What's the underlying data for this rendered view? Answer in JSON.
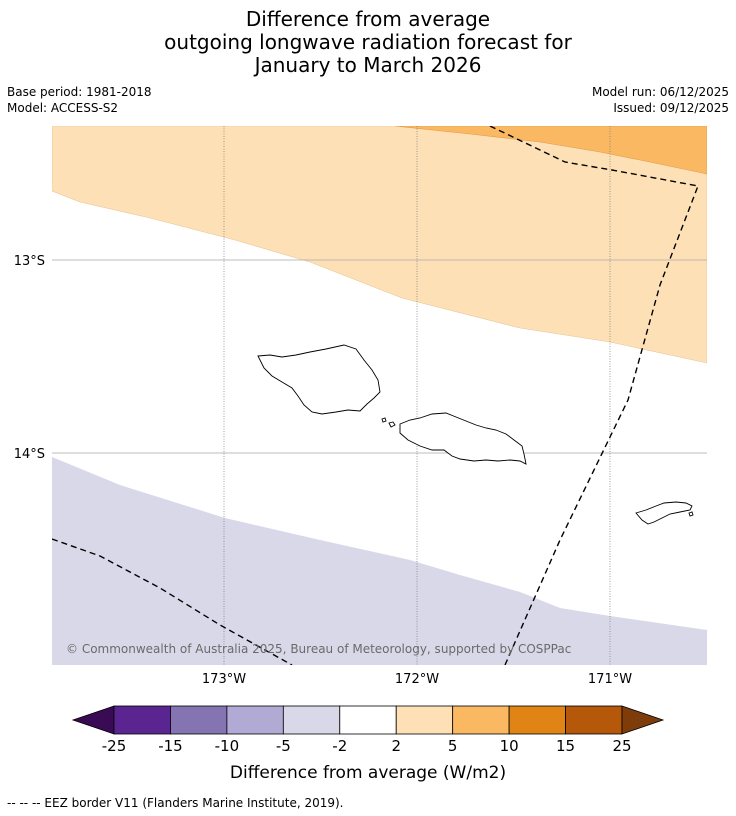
{
  "title": {
    "line1": "Difference from average",
    "line2": "outgoing longwave radiation forecast for",
    "line3": "January to March 2026"
  },
  "meta": {
    "base_period": "Base period: 1981-2018",
    "model": "Model: ACCESS-S2",
    "model_run": "Model run: 06/12/2025",
    "issued": "Issued: 09/12/2025"
  },
  "map": {
    "lat_labels": [
      "13°S",
      "14°S"
    ],
    "lon_labels": [
      "173°W",
      "172°W",
      "171°W"
    ],
    "copyright": "© Commonwealth of Australia 2025, Bureau of Meteorology, supported by COSPPac",
    "region_colors": {
      "background": "#ffffff",
      "high_2_5": "#fde0b6",
      "high_5_10": "#fbb862",
      "low_m5_m2": "#d8d8e9"
    }
  },
  "colorbar": {
    "ticks": [
      "-25",
      "-15",
      "-10",
      "-5",
      "-2",
      "2",
      "5",
      "10",
      "15",
      "25"
    ],
    "colors": [
      "#5a2590",
      "#8474b2",
      "#b1aad4",
      "#d8d8e9",
      "#ffffff",
      "#fde0b6",
      "#fbb862",
      "#e08416",
      "#b5580a"
    ],
    "extend_low_color": "#3a0a55",
    "extend_high_color": "#7f3c0b",
    "label": "Difference from average (W/m2)"
  },
  "footnote": "--  --  -- EEZ border V11 (Flanders Marine Institute, 2019)."
}
